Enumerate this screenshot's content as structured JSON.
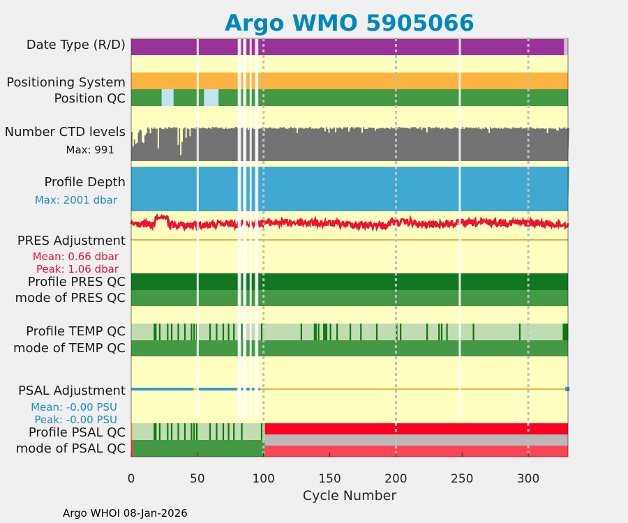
{
  "chart_data": {
    "type": "timeline",
    "title": "Argo WMO 5905066",
    "xlabel": "Cycle Number",
    "xlim": [
      0,
      330
    ],
    "xticks": [
      0,
      50,
      100,
      150,
      200,
      250,
      300
    ],
    "footer": "Argo WHOI 08-Jan-2026",
    "row_labels": {
      "date_type": "Date Type (R/D)",
      "positioning": "Positioning System",
      "position_qc": "Position QC",
      "ctd_levels": "Number CTD levels",
      "ctd_max": "Max: 991",
      "profile_depth": "Profile Depth",
      "depth_max": "Max: 2001 dbar",
      "pres_adj": "PRES Adjustment",
      "pres_mean": "Mean: 0.66 dbar",
      "pres_peak": "Peak: 1.06 dbar",
      "pres_qc": "Profile PRES QC",
      "pres_mode": "mode of PRES QC",
      "temp_qc": "Profile TEMP QC",
      "temp_mode": "mode of TEMP QC",
      "psal_adj": "PSAL Adjustment",
      "psal_mean": "Mean: -0.00 PSU",
      "psal_peak": "Peak: -0.00 PSU",
      "psal_qc": "Profile PSAL QC",
      "psal_mode": "mode of PSAL QC"
    },
    "missing_cycles": [
      50,
      81,
      82,
      85,
      86,
      90,
      94,
      95,
      248
    ],
    "date_type": {
      "realtime_until": 327,
      "delayed_from": 327
    },
    "position_qc_gaps": [
      [
        23,
        32
      ],
      [
        55,
        66
      ]
    ],
    "max_ctd_levels": 991,
    "max_depth_dbar": 2001,
    "pres_adjustment": {
      "mean": 0.66,
      "peak": 1.06
    },
    "psal_adjustment": {
      "mean": -0.0,
      "peak": -0.0
    },
    "temp_qc_flag_cycles": [
      17,
      18,
      21,
      27,
      30,
      35,
      40,
      45,
      47,
      49,
      59,
      64,
      69,
      73,
      77,
      83,
      98,
      128,
      138,
      139,
      141,
      145,
      146,
      147,
      150,
      155,
      165,
      173,
      185,
      200,
      203,
      223,
      232,
      234,
      238,
      258,
      293,
      326,
      327,
      328,
      329
    ],
    "psal_qc_bad_from": 101,
    "colors": {
      "background": "#ffffc0",
      "realtime": "#993399",
      "delayed": "#e6b3e6",
      "positioning": "#ffb340",
      "qc_good": "#449944",
      "qc_pres_dark": "#117722",
      "qc_light": "#c1dcb0",
      "qc_flag": "#117711",
      "qc_gap": "#c0e4f0",
      "ctd_bars": "#737373",
      "depth_bars": "#40a8d0",
      "pres_line": "#ee1133",
      "psal_line": "#3399cc",
      "adj_ref": "#e6b34d",
      "psal_bad": "#ff0022",
      "psal_grey": "#b9b9b9",
      "psal_mode_bad": "#ff4455",
      "title": "#0088bb",
      "pres_text": "#ee1133",
      "psal_text": "#1a8fc0"
    }
  }
}
